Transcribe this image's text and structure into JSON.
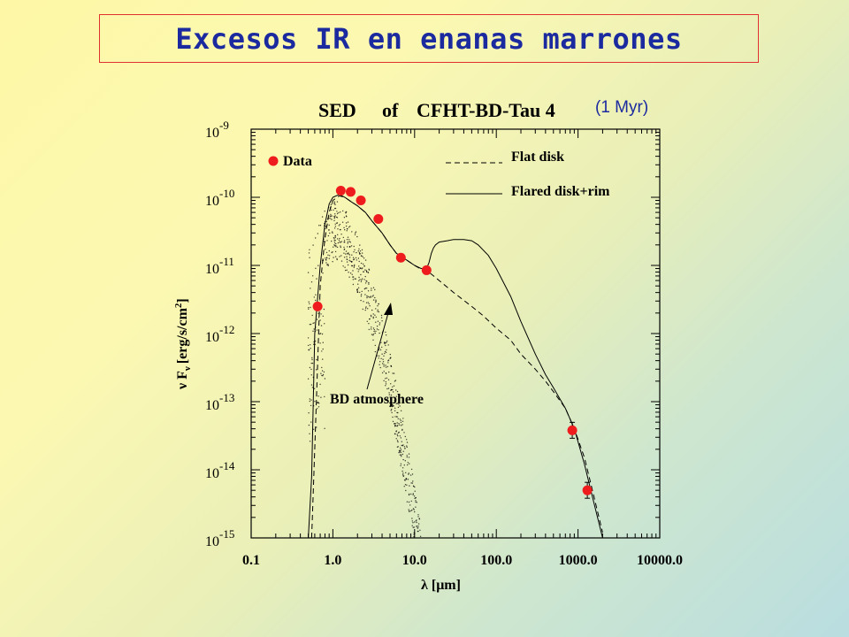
{
  "slide": {
    "title": "Excesos IR en enanas marrones"
  },
  "chart_data": {
    "type": "line",
    "title_parts": [
      "SED",
      "of",
      "CFHT-BD-Tau 4"
    ],
    "subtitle": "(1 Myr)",
    "xlabel": "λ [μm]",
    "ylabel": "ν F_ν [erg/s/cm²]",
    "ylabel_main": "ν F",
    "ylabel_sub": "ν",
    "ylabel_unit": "[erg/s/cm",
    "ylabel_sup": "2",
    "ylabel_close": "]",
    "x_scale": "log",
    "y_scale": "log",
    "xlim": [
      0.1,
      10000
    ],
    "ylim": [
      1e-15,
      1e-09
    ],
    "x_ticks": [
      {
        "value": 0.1,
        "label": "0.1"
      },
      {
        "value": 1,
        "label": "1.0"
      },
      {
        "value": 10,
        "label": "10.0"
      },
      {
        "value": 100,
        "label": "100.0"
      },
      {
        "value": 1000,
        "label": "1000.0"
      },
      {
        "value": 10000,
        "label": "10000.0"
      }
    ],
    "y_ticks": [
      {
        "value": 1e-09,
        "base": "10",
        "exp": "-9"
      },
      {
        "value": 1e-10,
        "base": "10",
        "exp": "-10"
      },
      {
        "value": 1e-11,
        "base": "10",
        "exp": "-11"
      },
      {
        "value": 1e-12,
        "base": "10",
        "exp": "-12"
      },
      {
        "value": 1e-13,
        "base": "10",
        "exp": "-13"
      },
      {
        "value": 1e-14,
        "base": "10",
        "exp": "-14"
      },
      {
        "value": 1e-15,
        "base": "10",
        "exp": "-15"
      }
    ],
    "legend": {
      "placement": "top",
      "data_label": "Data",
      "flat_label": "Flat disk",
      "flared_label": "Flared disk+rim"
    },
    "annotation": "BD atmosphere",
    "points": [
      {
        "x": 0.65,
        "y": 2.5e-12
      },
      {
        "x": 1.25,
        "y": 1.25e-10
      },
      {
        "x": 1.65,
        "y": 1.2e-10
      },
      {
        "x": 2.2,
        "y": 9e-11
      },
      {
        "x": 3.6,
        "y": 4.8e-11
      },
      {
        "x": 6.8,
        "y": 1.3e-11
      },
      {
        "x": 14,
        "y": 8.5e-12
      },
      {
        "x": 850,
        "y": 3.8e-14,
        "err": true
      },
      {
        "x": 1300,
        "y": 5e-15,
        "err": true
      }
    ],
    "series": [
      {
        "name": "Flat disk",
        "style": "dashed",
        "x": [
          0.55,
          0.6,
          0.7,
          0.8,
          0.9,
          1.0,
          1.2,
          1.4,
          1.7,
          2.0,
          2.5,
          3.0,
          4.0,
          5.0,
          6.0,
          8.0,
          10,
          12,
          14,
          20,
          30,
          50,
          70,
          100,
          150,
          200,
          300,
          400,
          500,
          700,
          900,
          1200,
          1500,
          2000
        ],
        "y": [
          1e-15,
          2e-14,
          5e-12,
          2.5e-11,
          6e-11,
          9e-11,
          1.05e-10,
          1e-10,
          8.5e-11,
          7.5e-11,
          6e-11,
          4.5e-11,
          3e-11,
          2e-11,
          1.5e-11,
          1.2e-11,
          1e-11,
          8.8e-12,
          8.5e-12,
          6e-12,
          4e-12,
          2.5e-12,
          1.8e-12,
          1.2e-12,
          8e-13,
          5e-13,
          3e-13,
          2e-13,
          1.4e-13,
          8e-14,
          4e-14,
          1.5e-14,
          5e-15,
          1.2e-15
        ]
      },
      {
        "name": "Flared disk+rim",
        "style": "solid",
        "x": [
          0.5,
          0.55,
          0.6,
          0.7,
          0.8,
          0.9,
          1.0,
          1.2,
          1.4,
          1.7,
          2.0,
          2.5,
          3.0,
          4.0,
          5.0,
          6.0,
          8.0,
          10,
          12,
          14,
          15,
          16,
          17,
          18,
          20,
          25,
          30,
          40,
          50,
          60,
          80,
          100,
          150,
          200,
          300,
          400,
          500,
          700,
          900,
          1200,
          1500,
          2000
        ],
        "y": [
          1e-15,
          8e-15,
          1e-12,
          1e-11,
          4e-11,
          8e-11,
          1e-10,
          1.1e-10,
          1e-10,
          8.5e-11,
          7.5e-11,
          6e-11,
          4.5e-11,
          3e-11,
          2e-11,
          1.5e-11,
          1.2e-11,
          1e-11,
          9e-12,
          9e-12,
          1.1e-11,
          1.5e-11,
          1.8e-11,
          2e-11,
          2.2e-11,
          2.3e-11,
          2.4e-11,
          2.4e-11,
          2.3e-11,
          2e-11,
          1.4e-11,
          9e-12,
          3.5e-12,
          1.5e-12,
          5e-13,
          2.5e-13,
          1.6e-13,
          8e-14,
          4e-14,
          1.2e-14,
          4e-15,
          1e-15
        ]
      }
    ],
    "grid": false,
    "colors": {
      "points": "#ee1c1c",
      "ink": "#000000",
      "title_text": "#1c2aa0",
      "title_border": "#e03030"
    }
  }
}
